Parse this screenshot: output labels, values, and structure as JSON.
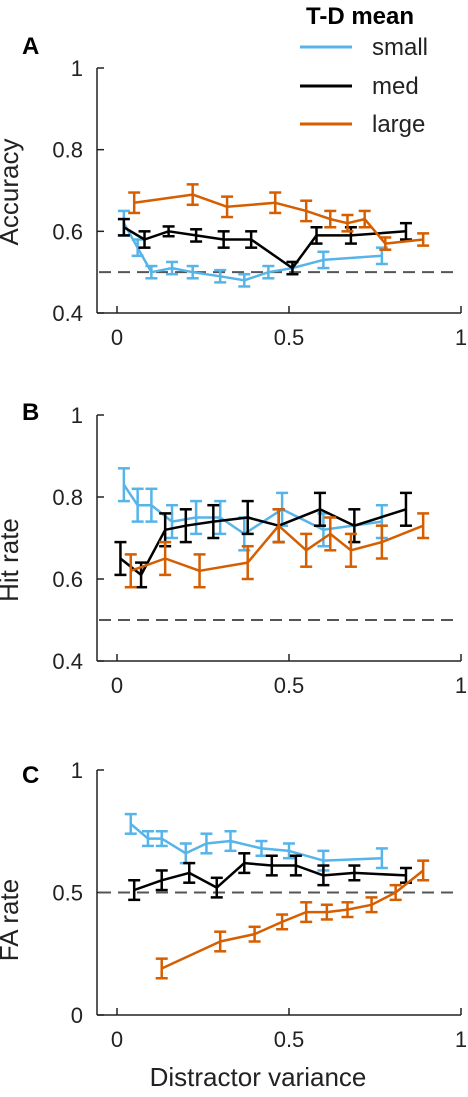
{
  "figure": {
    "legend": {
      "title": "T-D mean",
      "entries": [
        {
          "label": "small",
          "color": "#56B4E9"
        },
        {
          "label": "med",
          "color": "#000000"
        },
        {
          "label": "large",
          "color": "#D55E00"
        }
      ]
    },
    "xlabel": "Distractor variance"
  },
  "chart_data": [
    {
      "type": "line",
      "panel": "A",
      "ylabel": "Accuracy",
      "xlim": [
        0,
        1
      ],
      "ylim": [
        0.4,
        1
      ],
      "xticks": [
        0,
        0.5,
        1
      ],
      "xtick_labels": [
        "0",
        "0.5",
        "1"
      ],
      "yticks": [
        0.4,
        0.6,
        0.8,
        1
      ],
      "ytick_labels": [
        "0.4",
        "0.6",
        "0.8",
        "1"
      ],
      "reference_line": 0.5,
      "series": [
        {
          "name": "small",
          "color": "#56B4E9",
          "x": [
            0.02,
            0.06,
            0.1,
            0.16,
            0.22,
            0.3,
            0.37,
            0.44,
            0.51,
            0.6,
            0.77
          ],
          "y": [
            0.62,
            0.56,
            0.5,
            0.51,
            0.5,
            0.49,
            0.48,
            0.5,
            0.51,
            0.53,
            0.54
          ],
          "err": [
            0.03,
            0.02,
            0.015,
            0.015,
            0.015,
            0.015,
            0.015,
            0.015,
            0.015,
            0.02,
            0.02
          ]
        },
        {
          "name": "med",
          "color": "#000000",
          "x": [
            0.02,
            0.08,
            0.15,
            0.23,
            0.31,
            0.39,
            0.51,
            0.58,
            0.68,
            0.84
          ],
          "y": [
            0.61,
            0.58,
            0.6,
            0.59,
            0.58,
            0.58,
            0.51,
            0.59,
            0.59,
            0.6
          ],
          "err": [
            0.02,
            0.02,
            0.012,
            0.015,
            0.02,
            0.02,
            0.015,
            0.02,
            0.02,
            0.02
          ]
        },
        {
          "name": "large",
          "color": "#D55E00",
          "x": [
            0.05,
            0.22,
            0.32,
            0.46,
            0.55,
            0.62,
            0.67,
            0.72,
            0.78,
            0.89
          ],
          "y": [
            0.67,
            0.69,
            0.66,
            0.67,
            0.65,
            0.63,
            0.62,
            0.63,
            0.57,
            0.58
          ],
          "err": [
            0.025,
            0.025,
            0.025,
            0.025,
            0.025,
            0.02,
            0.02,
            0.02,
            0.015,
            0.015
          ]
        }
      ]
    },
    {
      "type": "line",
      "panel": "B",
      "ylabel": "Hit rate",
      "xlim": [
        0,
        1
      ],
      "ylim": [
        0.4,
        1
      ],
      "xticks": [
        0,
        0.5,
        1
      ],
      "xtick_labels": [
        "0",
        "0.5",
        "1"
      ],
      "yticks": [
        0.4,
        0.6,
        0.8,
        1
      ],
      "ytick_labels": [
        "0.4",
        "0.6",
        "0.8",
        "1"
      ],
      "reference_line": 0.5,
      "series": [
        {
          "name": "small",
          "color": "#56B4E9",
          "x": [
            0.02,
            0.06,
            0.1,
            0.16,
            0.23,
            0.3,
            0.37,
            0.48,
            0.6,
            0.77
          ],
          "y": [
            0.83,
            0.78,
            0.78,
            0.74,
            0.75,
            0.75,
            0.71,
            0.77,
            0.72,
            0.74
          ],
          "err": [
            0.04,
            0.04,
            0.04,
            0.04,
            0.04,
            0.04,
            0.04,
            0.04,
            0.04,
            0.04
          ]
        },
        {
          "name": "med",
          "color": "#000000",
          "x": [
            0.01,
            0.07,
            0.14,
            0.2,
            0.28,
            0.38,
            0.47,
            0.59,
            0.69,
            0.84
          ],
          "y": [
            0.65,
            0.61,
            0.72,
            0.73,
            0.74,
            0.75,
            0.73,
            0.77,
            0.73,
            0.77
          ],
          "err": [
            0.04,
            0.03,
            0.04,
            0.04,
            0.04,
            0.04,
            0.04,
            0.04,
            0.04,
            0.04
          ]
        },
        {
          "name": "large",
          "color": "#D55E00",
          "x": [
            0.04,
            0.14,
            0.24,
            0.38,
            0.47,
            0.55,
            0.62,
            0.68,
            0.77,
            0.89
          ],
          "y": [
            0.62,
            0.65,
            0.62,
            0.64,
            0.73,
            0.67,
            0.71,
            0.67,
            0.69,
            0.73
          ],
          "err": [
            0.04,
            0.04,
            0.04,
            0.04,
            0.04,
            0.04,
            0.04,
            0.04,
            0.04,
            0.03
          ]
        }
      ]
    },
    {
      "type": "line",
      "panel": "C",
      "ylabel": "FA rate",
      "xlim": [
        0,
        1
      ],
      "ylim": [
        0,
        1
      ],
      "xticks": [
        0,
        0.5,
        1
      ],
      "xtick_labels": [
        "0",
        "0.5",
        "1"
      ],
      "yticks": [
        0,
        0.5,
        1
      ],
      "ytick_labels": [
        "0",
        "0.5",
        "1"
      ],
      "reference_line": 0.5,
      "series": [
        {
          "name": "small",
          "color": "#56B4E9",
          "x": [
            0.04,
            0.09,
            0.13,
            0.2,
            0.26,
            0.33,
            0.42,
            0.5,
            0.6,
            0.77
          ],
          "y": [
            0.78,
            0.72,
            0.72,
            0.66,
            0.7,
            0.71,
            0.68,
            0.67,
            0.63,
            0.64
          ],
          "err": [
            0.04,
            0.03,
            0.03,
            0.04,
            0.04,
            0.04,
            0.03,
            0.03,
            0.04,
            0.04
          ]
        },
        {
          "name": "med",
          "color": "#000000",
          "x": [
            0.05,
            0.13,
            0.21,
            0.29,
            0.37,
            0.45,
            0.52,
            0.6,
            0.69,
            0.84
          ],
          "y": [
            0.51,
            0.55,
            0.58,
            0.52,
            0.62,
            0.61,
            0.61,
            0.57,
            0.58,
            0.57
          ],
          "err": [
            0.04,
            0.04,
            0.04,
            0.04,
            0.04,
            0.04,
            0.04,
            0.04,
            0.03,
            0.03
          ]
        },
        {
          "name": "large",
          "color": "#D55E00",
          "x": [
            0.13,
            0.3,
            0.4,
            0.48,
            0.55,
            0.61,
            0.67,
            0.74,
            0.81,
            0.89
          ],
          "y": [
            0.19,
            0.3,
            0.33,
            0.38,
            0.42,
            0.42,
            0.43,
            0.45,
            0.5,
            0.59
          ],
          "err": [
            0.04,
            0.04,
            0.03,
            0.03,
            0.04,
            0.03,
            0.03,
            0.03,
            0.03,
            0.04
          ]
        }
      ]
    }
  ]
}
